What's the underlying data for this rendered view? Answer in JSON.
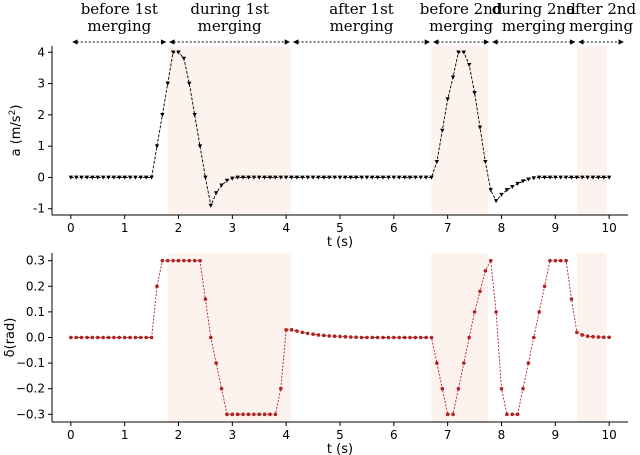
{
  "chart_data": {
    "type": "line",
    "phases": [
      {
        "lines": [
          "before 1st",
          "merging"
        ],
        "start": 0,
        "end": 1.8
      },
      {
        "lines": [
          "during 1st",
          "merging"
        ],
        "start": 1.8,
        "end": 4.1
      },
      {
        "lines": [
          "after 1st",
          "merging"
        ],
        "start": 4.1,
        "end": 6.7
      },
      {
        "lines": [
          "before 2nd",
          "merging"
        ],
        "start": 6.7,
        "end": 7.8
      },
      {
        "lines": [
          "during 2nd",
          "merging"
        ],
        "start": 7.8,
        "end": 9.4
      },
      {
        "lines": [
          "after 2nd",
          "merging"
        ],
        "start": 9.4,
        "end": 10.3
      }
    ],
    "charts": [
      {
        "name": "acceleration",
        "type": "line",
        "xlabel": "t (s)",
        "ylabel_main": "a (m/s",
        "ylabel_sup": "2",
        "ylabel_tail": ")",
        "xlim": [
          -0.35,
          10.35
        ],
        "ylim": [
          -1.2,
          4.2
        ],
        "xticks": [
          0,
          1,
          2,
          3,
          4,
          5,
          6,
          7,
          8,
          9,
          10
        ],
        "yticks": [
          -1,
          0,
          1,
          2,
          3,
          4
        ],
        "shaded_regions": [
          [
            1.8,
            4.1
          ],
          [
            6.7,
            7.75
          ],
          [
            9.4,
            9.95
          ]
        ],
        "color": "#000000",
        "marker": "v",
        "x": [
          0,
          0.1,
          0.2,
          0.3,
          0.4,
          0.5,
          0.6,
          0.7,
          0.8,
          0.9,
          1.0,
          1.1,
          1.2,
          1.3,
          1.4,
          1.5,
          1.6,
          1.7,
          1.8,
          1.9,
          2.0,
          2.1,
          2.2,
          2.3,
          2.4,
          2.5,
          2.6,
          2.7,
          2.8,
          2.9,
          3.0,
          3.1,
          3.2,
          3.3,
          3.4,
          3.5,
          3.6,
          3.7,
          3.8,
          3.9,
          4.0,
          4.1,
          4.2,
          4.3,
          4.4,
          4.5,
          4.6,
          4.7,
          4.8,
          4.9,
          5.0,
          5.1,
          5.2,
          5.3,
          5.4,
          5.5,
          5.6,
          5.7,
          5.8,
          5.9,
          6.0,
          6.1,
          6.2,
          6.3,
          6.4,
          6.5,
          6.6,
          6.7,
          6.8,
          6.9,
          7.0,
          7.1,
          7.2,
          7.3,
          7.4,
          7.5,
          7.6,
          7.7,
          7.8,
          7.9,
          8.0,
          8.1,
          8.2,
          8.3,
          8.4,
          8.5,
          8.6,
          8.7,
          8.8,
          8.9,
          9.0,
          9.1,
          9.2,
          9.3,
          9.4,
          9.5,
          9.6,
          9.7,
          9.8,
          9.9,
          10.0
        ],
        "y": [
          0,
          0,
          0,
          0,
          0,
          0,
          0,
          0,
          0,
          0,
          0,
          0,
          0,
          0,
          0,
          0,
          1,
          2,
          3,
          4,
          4,
          3.8,
          3,
          2,
          1,
          0,
          -0.9,
          -0.5,
          -0.25,
          -0.1,
          -0.03,
          0,
          0,
          0,
          0,
          0,
          0,
          0,
          0,
          0,
          0,
          0,
          0,
          0,
          0,
          0,
          0,
          0,
          0,
          0,
          0,
          0,
          0,
          0,
          0,
          0,
          0,
          0,
          0,
          0,
          0,
          0,
          0,
          0,
          0,
          0,
          0,
          0,
          0.5,
          1.5,
          2.5,
          3.2,
          4,
          4,
          3.6,
          2.7,
          1.6,
          0.5,
          -0.4,
          -0.75,
          -0.55,
          -0.4,
          -0.3,
          -0.2,
          -0.12,
          -0.06,
          -0.02,
          0,
          0,
          0,
          0,
          0,
          0,
          0,
          0,
          0,
          0,
          0,
          0,
          0,
          0
        ]
      },
      {
        "name": "steering",
        "type": "line",
        "xlabel": "t (s)",
        "ylabel_main": "δ(rad)",
        "ylabel_sup": "",
        "ylabel_tail": "",
        "xlim": [
          -0.35,
          10.35
        ],
        "ylim": [
          -0.33,
          0.33
        ],
        "xticks": [
          0,
          1,
          2,
          3,
          4,
          5,
          6,
          7,
          8,
          9,
          10
        ],
        "yticks": [
          -0.3,
          -0.2,
          -0.1,
          0.0,
          0.1,
          0.2,
          0.3
        ],
        "yticklabels": [
          "−0.3",
          "−0.2",
          "−0.1",
          "0.0",
          "0.1",
          "0.2",
          "0.3"
        ],
        "shaded_regions": [
          [
            1.8,
            4.1
          ],
          [
            6.7,
            7.75
          ],
          [
            9.4,
            9.95
          ]
        ],
        "color": "#b22222",
        "marker": "o",
        "x": [
          0,
          0.1,
          0.2,
          0.3,
          0.4,
          0.5,
          0.6,
          0.7,
          0.8,
          0.9,
          1.0,
          1.1,
          1.2,
          1.3,
          1.4,
          1.5,
          1.6,
          1.7,
          1.8,
          1.9,
          2.0,
          2.1,
          2.2,
          2.3,
          2.4,
          2.5,
          2.6,
          2.7,
          2.8,
          2.9,
          3.0,
          3.1,
          3.2,
          3.3,
          3.4,
          3.5,
          3.6,
          3.7,
          3.8,
          3.9,
          4.0,
          4.1,
          4.2,
          4.3,
          4.4,
          4.5,
          4.6,
          4.7,
          4.8,
          4.9,
          5.0,
          5.1,
          5.2,
          5.3,
          5.4,
          5.5,
          5.6,
          5.7,
          5.8,
          5.9,
          6.0,
          6.1,
          6.2,
          6.3,
          6.4,
          6.5,
          6.6,
          6.7,
          6.8,
          6.9,
          7.0,
          7.1,
          7.2,
          7.3,
          7.4,
          7.5,
          7.6,
          7.7,
          7.8,
          7.9,
          8.0,
          8.1,
          8.2,
          8.3,
          8.4,
          8.5,
          8.6,
          8.7,
          8.8,
          8.9,
          9.0,
          9.1,
          9.2,
          9.3,
          9.4,
          9.5,
          9.6,
          9.7,
          9.8,
          9.9,
          10.0
        ],
        "y": [
          0,
          0,
          0,
          0,
          0,
          0,
          0,
          0,
          0,
          0,
          0,
          0,
          0,
          0,
          0,
          0,
          0.2,
          0.3,
          0.3,
          0.3,
          0.3,
          0.3,
          0.3,
          0.3,
          0.3,
          0.15,
          0,
          -0.1,
          -0.2,
          -0.3,
          -0.3,
          -0.3,
          -0.3,
          -0.3,
          -0.3,
          -0.3,
          -0.3,
          -0.3,
          -0.3,
          -0.2,
          0.03,
          0.03,
          0.025,
          0.02,
          0.016,
          0.013,
          0.01,
          0.008,
          0.006,
          0.005,
          0.004,
          0.003,
          0.002,
          0.001,
          0,
          0,
          0,
          0,
          0,
          0,
          0,
          0,
          0,
          0,
          0,
          0,
          0,
          0,
          -0.1,
          -0.2,
          -0.3,
          -0.3,
          -0.2,
          -0.1,
          0,
          0.1,
          0.18,
          0.26,
          0.3,
          0.1,
          -0.2,
          -0.3,
          -0.3,
          -0.3,
          -0.2,
          -0.1,
          0,
          0.1,
          0.2,
          0.3,
          0.3,
          0.3,
          0.3,
          0.15,
          0.02,
          0.01,
          0.005,
          0.003,
          0.002,
          0.001,
          0.001
        ]
      }
    ]
  }
}
